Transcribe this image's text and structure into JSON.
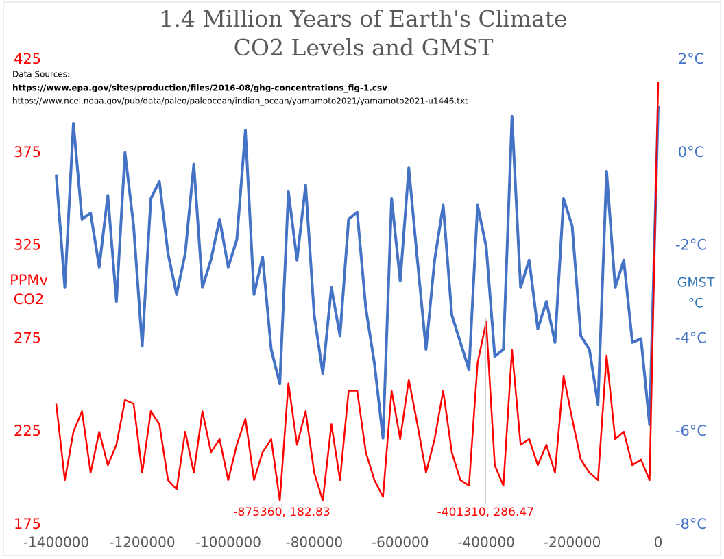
{
  "chart_data": {
    "type": "line",
    "title": [
      "1.4 Million Years of Earth's Climate",
      "CO2 Levels and GMST"
    ],
    "data_sources": {
      "heading": "Data Sources:",
      "urls": [
        "https://www.epa.gov/sites/production/files/2016-08/ghg-concentrations_fig-1.csv",
        "https://www.ncei.noaa.gov/pub/data/paleo/paleocean/indian_ocean/yamamoto2021/yamamoto2021-u1446.txt"
      ]
    },
    "y_label": [
      "PPMv",
      "CO2"
    ],
    "y2_label": [
      "GMST",
      "°C"
    ],
    "x": [
      -1400000,
      -1380000,
      -1360000,
      -1340000,
      -1320000,
      -1300000,
      -1280000,
      -1260000,
      -1240000,
      -1220000,
      -1200000,
      -1180000,
      -1160000,
      -1140000,
      -1120000,
      -1100000,
      -1080000,
      -1060000,
      -1040000,
      -1020000,
      -1000000,
      -980000,
      -960000,
      -940000,
      -920000,
      -900000,
      -880000,
      -860000,
      -840000,
      -820000,
      -800000,
      -780000,
      -760000,
      -740000,
      -720000,
      -700000,
      -680000,
      -660000,
      -640000,
      -620000,
      -600000,
      -580000,
      -560000,
      -540000,
      -520000,
      -500000,
      -480000,
      -460000,
      -440000,
      -420000,
      -400000,
      -380000,
      -360000,
      -340000,
      -320000,
      -300000,
      -280000,
      -260000,
      -240000,
      -220000,
      -200000,
      -180000,
      -160000,
      -140000,
      -120000,
      -100000,
      -80000,
      -60000,
      -40000,
      -20000,
      0
    ],
    "series": [
      {
        "color": "#4472c4",
        "axis": "y2",
        "values": [
          -0.47,
          -2.9,
          0.63,
          -1.43,
          -1.3,
          -2.46,
          -0.92,
          -3.2,
          0.0,
          -1.58,
          -4.16,
          -0.99,
          -0.62,
          -2.17,
          -3.05,
          -2.17,
          -0.25,
          -2.9,
          -2.3,
          -1.43,
          -2.46,
          -1.87,
          0.48,
          -3.05,
          -2.24,
          -4.23,
          -4.97,
          -0.84,
          -2.31,
          -0.7,
          -3.49,
          -4.75,
          -2.9,
          -3.94,
          -1.43,
          -1.28,
          -3.34,
          -4.53,
          -6.14,
          -0.99,
          -2.76,
          -0.33,
          -2.31,
          -4.23,
          -2.31,
          -1.13,
          -3.49,
          -4.08,
          -4.67,
          -1.13,
          -2.02,
          -4.38,
          -4.23,
          0.78,
          -2.9,
          -2.31,
          -3.79,
          -3.2,
          -4.08,
          -0.99,
          -1.58,
          -3.94,
          -4.23,
          -5.41,
          -0.4,
          -2.9,
          -2.31,
          -4.08,
          -4.0,
          -5.85,
          1.0
        ]
      },
      {
        "color": "#ff0000",
        "axis": "y",
        "values": [
          240,
          199,
          225,
          236,
          203,
          225,
          207,
          218,
          242,
          240,
          203,
          236,
          229,
          199,
          194,
          225,
          203,
          236,
          214,
          221,
          199,
          218,
          232,
          199,
          214,
          221,
          188,
          251,
          218,
          236,
          203,
          188,
          229,
          199,
          247,
          247,
          214,
          199,
          190,
          247,
          221,
          253,
          229,
          203,
          221,
          247,
          214,
          199,
          196,
          262,
          284,
          207,
          196,
          269,
          218,
          221,
          207,
          218,
          203,
          255,
          232,
          210,
          203,
          199,
          266,
          221,
          225,
          207,
          210,
          199,
          413
        ]
      }
    ],
    "annotations": [
      {
        "x": -875360,
        "y": 182.83,
        "label": "-875360, 182.83"
      },
      {
        "x": -401310,
        "y": 286.47,
        "label": "-401310, 286.47"
      }
    ],
    "xlim": [
      -1400000,
      0
    ],
    "xticks": [
      -1400000,
      -1200000,
      -1000000,
      -800000,
      -600000,
      -400000,
      -200000,
      0
    ],
    "ylim": [
      175,
      425
    ],
    "yticks": [
      175,
      225,
      275,
      325,
      375,
      425
    ],
    "y2lim": [
      -8,
      2
    ],
    "y2ticks": [
      {
        "value": -8,
        "label": "-8°C"
      },
      {
        "value": -6,
        "label": "-6°C"
      },
      {
        "value": -4,
        "label": "-4°C"
      },
      {
        "value": -2,
        "label": "-2°C"
      },
      {
        "value": 0,
        "label": "0°C"
      },
      {
        "value": 2,
        "label": "2°C"
      }
    ]
  }
}
